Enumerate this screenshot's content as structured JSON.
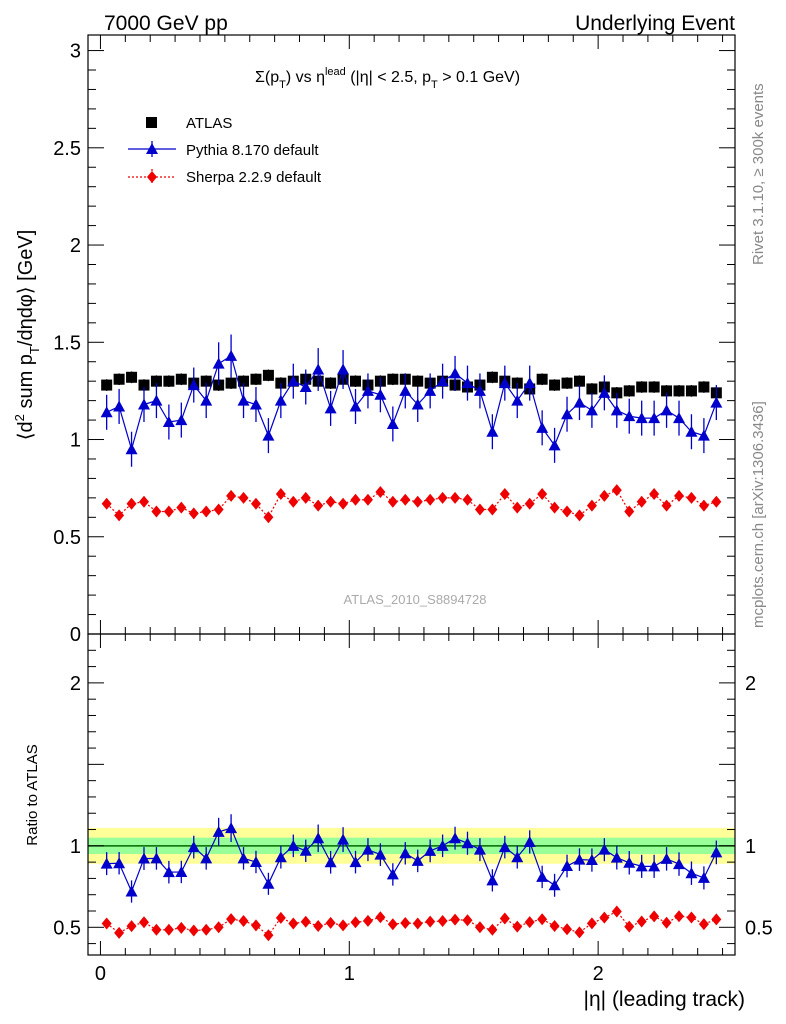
{
  "header": {
    "left": "7000 GeV pp",
    "right": "Underlying Event"
  },
  "side_text": {
    "rivet": "Rivet 3.1.10, ≥ 300k events",
    "mcplots": "mcplots.cern.ch [arXiv:1306.3436]"
  },
  "watermark": "ATLAS_2010_S8894728",
  "title_parts": {
    "sigma": "Σ(p",
    "sub_T": "T",
    "vs": ") vs η",
    "sup_lead": "lead",
    "rest1": " (|η| < 2.5, p",
    "sub_T2": "T",
    "rest2": " > 0.1 GeV)"
  },
  "ylabel_parts": {
    "a": "⟨d",
    "sup2": "2",
    "b": " sum p",
    "subT": "T",
    "c": "/dηdφ⟩ [GeV]"
  },
  "ratio_ylabel": "Ratio to ATLAS",
  "xlabel": "|η| (leading track)",
  "colors": {
    "atlas": "#000000",
    "pythia": "#0000cc",
    "sherpa": "#ee0000",
    "band_inner": "#99ff99",
    "band_outer": "#ffff99",
    "ratio_line": "#006600"
  },
  "chart_data": {
    "type": "scatter",
    "x_range": [
      -0.05,
      2.55
    ],
    "main_ylim": [
      0,
      3.08
    ],
    "ratio_ylim": [
      0.33,
      2.3
    ],
    "x_ticks": [
      "0",
      "1",
      "2"
    ],
    "main_y_ticks": [
      "0",
      "0.5",
      "1",
      "1.5",
      "2",
      "2.5",
      "3"
    ],
    "ratio_y_ticks": [
      "0.5",
      "1",
      "2"
    ],
    "x": [
      0.025,
      0.075,
      0.125,
      0.175,
      0.225,
      0.275,
      0.325,
      0.375,
      0.425,
      0.475,
      0.525,
      0.575,
      0.625,
      0.675,
      0.725,
      0.775,
      0.825,
      0.875,
      0.925,
      0.975,
      1.025,
      1.075,
      1.125,
      1.175,
      1.225,
      1.275,
      1.325,
      1.375,
      1.425,
      1.475,
      1.525,
      1.575,
      1.625,
      1.675,
      1.725,
      1.775,
      1.825,
      1.875,
      1.925,
      1.975,
      2.025,
      2.075,
      2.125,
      2.175,
      2.225,
      2.275,
      2.325,
      2.375,
      2.425,
      2.475
    ],
    "series": [
      {
        "name": "ATLAS",
        "marker": "square",
        "values": [
          1.28,
          1.31,
          1.32,
          1.28,
          1.3,
          1.3,
          1.31,
          1.29,
          1.3,
          1.28,
          1.29,
          1.3,
          1.31,
          1.33,
          1.29,
          1.3,
          1.31,
          1.3,
          1.29,
          1.31,
          1.3,
          1.28,
          1.3,
          1.31,
          1.31,
          1.3,
          1.29,
          1.3,
          1.28,
          1.27,
          1.28,
          1.32,
          1.3,
          1.29,
          1.26,
          1.31,
          1.28,
          1.29,
          1.3,
          1.26,
          1.27,
          1.24,
          1.25,
          1.27,
          1.27,
          1.25,
          1.25,
          1.25,
          1.27,
          1.24
        ],
        "errors": [
          0.03,
          0.03,
          0.03,
          0.03,
          0.03,
          0.03,
          0.03,
          0.03,
          0.03,
          0.03,
          0.03,
          0.03,
          0.03,
          0.03,
          0.03,
          0.03,
          0.03,
          0.03,
          0.03,
          0.03,
          0.03,
          0.03,
          0.03,
          0.03,
          0.03,
          0.03,
          0.03,
          0.03,
          0.03,
          0.03,
          0.03,
          0.03,
          0.03,
          0.03,
          0.03,
          0.03,
          0.03,
          0.03,
          0.03,
          0.03,
          0.03,
          0.03,
          0.03,
          0.03,
          0.03,
          0.03,
          0.03,
          0.03,
          0.03,
          0.03
        ]
      },
      {
        "name": "Pythia 8.170 default",
        "marker": "triangle",
        "values": [
          1.14,
          1.17,
          0.95,
          1.18,
          1.2,
          1.09,
          1.1,
          1.28,
          1.2,
          1.39,
          1.43,
          1.2,
          1.18,
          1.02,
          1.2,
          1.3,
          1.27,
          1.36,
          1.16,
          1.36,
          1.17,
          1.25,
          1.23,
          1.08,
          1.25,
          1.18,
          1.25,
          1.3,
          1.34,
          1.29,
          1.25,
          1.04,
          1.29,
          1.2,
          1.29,
          1.06,
          0.97,
          1.13,
          1.19,
          1.15,
          1.24,
          1.15,
          1.12,
          1.11,
          1.11,
          1.15,
          1.11,
          1.04,
          1.02,
          1.19
        ],
        "errors": [
          0.09,
          0.09,
          0.09,
          0.09,
          0.09,
          0.09,
          0.09,
          0.09,
          0.09,
          0.11,
          0.11,
          0.09,
          0.09,
          0.09,
          0.09,
          0.09,
          0.09,
          0.11,
          0.09,
          0.1,
          0.09,
          0.09,
          0.09,
          0.09,
          0.09,
          0.09,
          0.09,
          0.09,
          0.09,
          0.09,
          0.09,
          0.09,
          0.09,
          0.09,
          0.09,
          0.09,
          0.09,
          0.09,
          0.09,
          0.09,
          0.09,
          0.09,
          0.09,
          0.09,
          0.09,
          0.09,
          0.09,
          0.09,
          0.09,
          0.09
        ]
      },
      {
        "name": "Sherpa 2.2.9 default",
        "marker": "diamond",
        "values": [
          0.67,
          0.61,
          0.67,
          0.68,
          0.63,
          0.63,
          0.65,
          0.62,
          0.63,
          0.64,
          0.71,
          0.7,
          0.67,
          0.6,
          0.72,
          0.68,
          0.7,
          0.66,
          0.68,
          0.67,
          0.69,
          0.69,
          0.73,
          0.68,
          0.69,
          0.68,
          0.69,
          0.7,
          0.7,
          0.69,
          0.64,
          0.64,
          0.72,
          0.65,
          0.67,
          0.72,
          0.65,
          0.63,
          0.61,
          0.66,
          0.71,
          0.74,
          0.63,
          0.68,
          0.72,
          0.66,
          0.71,
          0.7,
          0.66,
          0.68
        ],
        "errors": [
          0.025,
          0.025,
          0.025,
          0.025,
          0.025,
          0.025,
          0.025,
          0.025,
          0.025,
          0.025,
          0.025,
          0.025,
          0.025,
          0.025,
          0.025,
          0.025,
          0.025,
          0.025,
          0.025,
          0.025,
          0.025,
          0.025,
          0.025,
          0.025,
          0.025,
          0.025,
          0.025,
          0.025,
          0.025,
          0.025,
          0.025,
          0.025,
          0.025,
          0.025,
          0.025,
          0.025,
          0.025,
          0.025,
          0.025,
          0.025,
          0.025,
          0.025,
          0.025,
          0.025,
          0.025,
          0.025,
          0.025,
          0.025,
          0.025,
          0.025
        ]
      }
    ],
    "ratio_band_inner": 0.05,
    "ratio_band_outer": 0.11,
    "legend": "top-left"
  }
}
